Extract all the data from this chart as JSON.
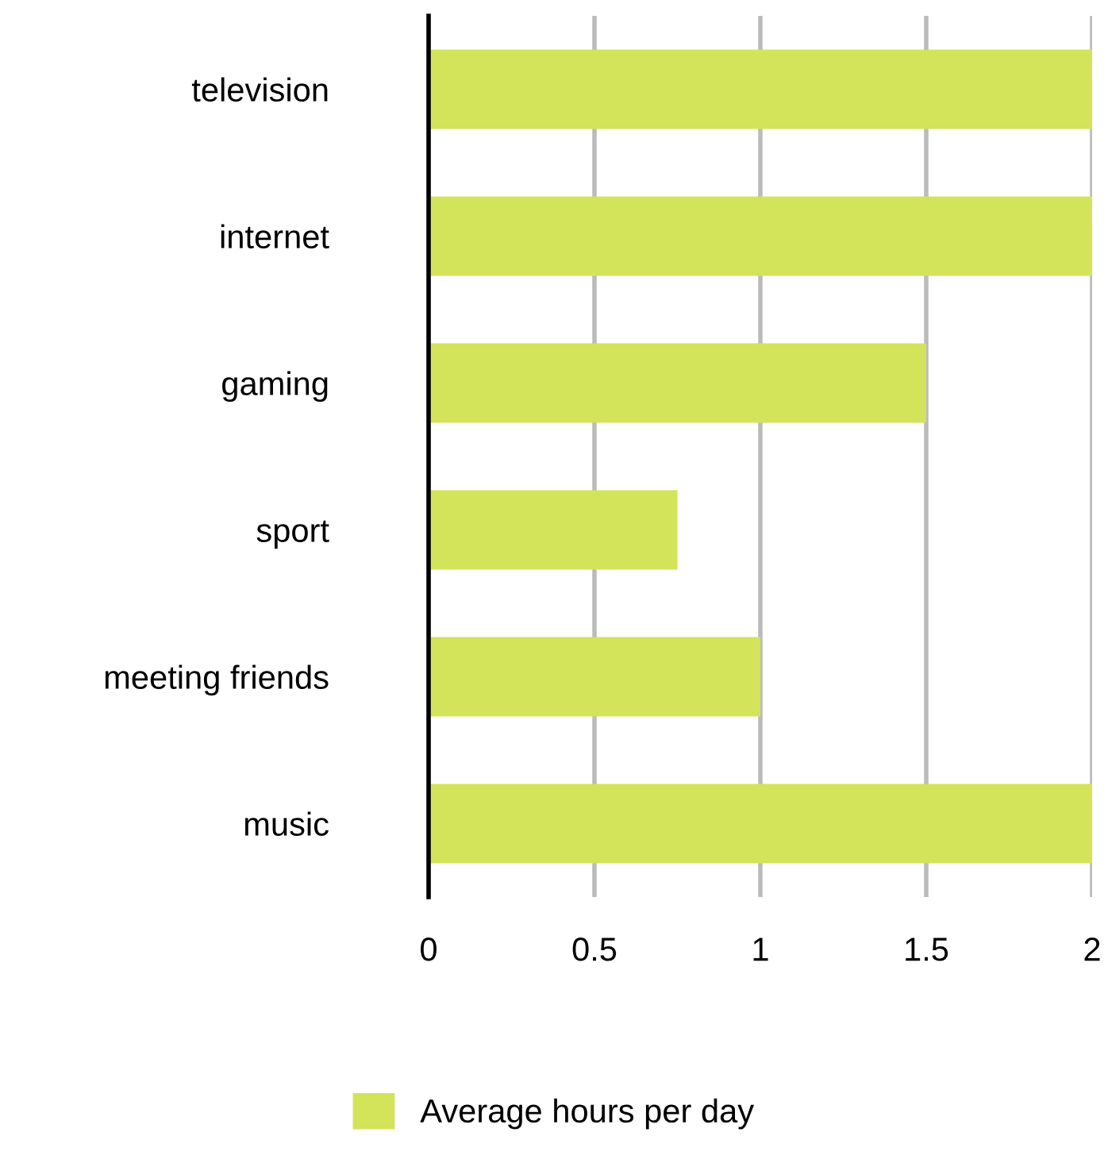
{
  "chart_data": {
    "type": "bar",
    "orientation": "horizontal",
    "categories": [
      "television",
      "internet",
      "gaming",
      "sport",
      "meeting friends",
      "music"
    ],
    "series": [
      {
        "name": "Average hours per day",
        "color": "#d3e35a",
        "values": [
          2,
          2,
          1.5,
          0.75,
          1,
          2
        ]
      }
    ],
    "xlim": [
      0,
      2
    ],
    "xticks": [
      0,
      0.5,
      1,
      1.5,
      2
    ],
    "grid": "x",
    "legend": "bottom"
  }
}
